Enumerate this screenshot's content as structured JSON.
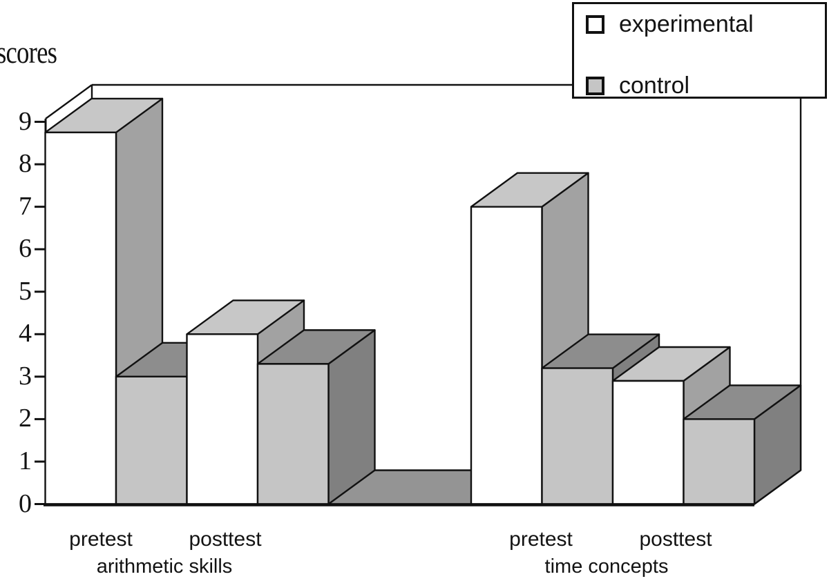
{
  "figure": {
    "background": "#ffffff",
    "kind": "3d grouped column chart"
  },
  "chart_data": {
    "type": "bar",
    "style": "3d-column",
    "title": "",
    "xlabel": "",
    "ylabel": "scores",
    "ylim": [
      0,
      9
    ],
    "ytick_interval": 1,
    "yticks": [
      0,
      1,
      2,
      3,
      4,
      5,
      6,
      7,
      8,
      9
    ],
    "grid": false,
    "legend_position": "top-right",
    "categories": [
      "arithmetic skills pretest",
      "arithmetic skills posttest",
      "time concepts pretest",
      "time concepts posttest"
    ],
    "x_subgroup_labels": [
      "pretest",
      "posttest",
      "pretest",
      "posttest"
    ],
    "x_group_labels": [
      "arithmetic skills",
      "time concepts"
    ],
    "series": [
      {
        "name": "experimental",
        "values": [
          8.75,
          4.0,
          7.0,
          2.9
        ],
        "colors": {
          "front": "#ffffff",
          "top": "#c7c7c7",
          "side": "#a2a2a2"
        }
      },
      {
        "name": "control",
        "values": [
          3.0,
          3.3,
          3.2,
          2.0
        ],
        "colors": {
          "front": "#c5c5c5",
          "top": "#8d8d8d",
          "side": "#808080"
        }
      }
    ],
    "floor_color": "#949494",
    "axis_color": "#111111"
  }
}
